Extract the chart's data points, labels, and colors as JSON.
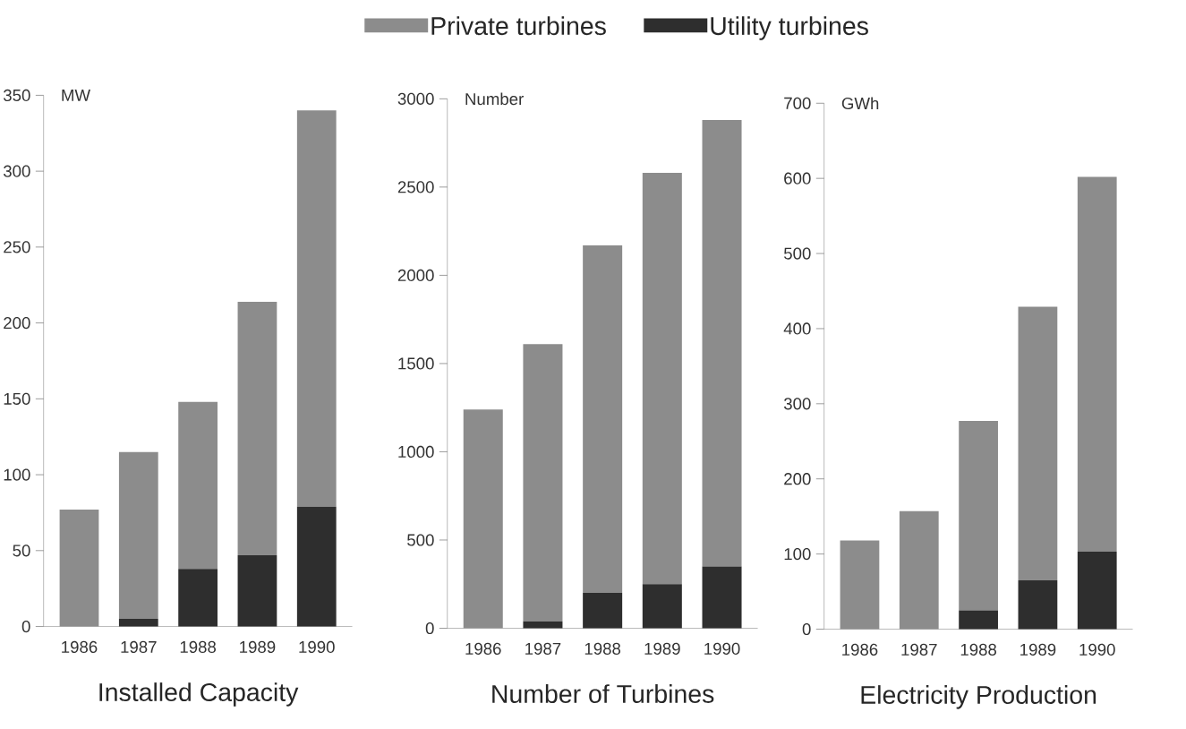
{
  "chart_data": [
    {
      "type": "bar",
      "title": "Installed Capacity",
      "ylabel": "MW",
      "categories": [
        "1986",
        "1987",
        "1988",
        "1989",
        "1990"
      ],
      "stacked": true,
      "legend": "top",
      "series": [
        {
          "name": "Utility turbines",
          "color": "#2e2e2e",
          "values": [
            0,
            5,
            38,
            47,
            79
          ]
        },
        {
          "name": "Private turbines",
          "color": "#8c8c8c",
          "values": [
            77,
            110,
            110,
            167,
            261
          ]
        }
      ],
      "ylim": [
        0,
        350
      ],
      "yticks": [
        0,
        50,
        100,
        150,
        200,
        250,
        300,
        350
      ]
    },
    {
      "type": "bar",
      "title": "Number of Turbines",
      "ylabel": "Number",
      "categories": [
        "1986",
        "1987",
        "1988",
        "1989",
        "1990"
      ],
      "stacked": true,
      "series": [
        {
          "color": "#2e2e2e",
          "values": [
            0,
            40,
            200,
            250,
            350
          ]
        },
        {
          "color": "#8c8c8c",
          "values": [
            1240,
            1570,
            1970,
            2330,
            2530
          ]
        }
      ],
      "ylim": [
        0,
        3000
      ],
      "yticks": [
        0,
        500,
        1000,
        1500,
        2000,
        2500,
        3000
      ]
    },
    {
      "type": "bar",
      "title": "Electricity Production",
      "ylabel": "GWh",
      "categories": [
        "1986",
        "1987",
        "1988",
        "1989",
        "1990"
      ],
      "stacked": true,
      "series": [
        {
          "color": "#2e2e2e",
          "values": [
            0,
            0,
            25,
            65,
            103
          ]
        },
        {
          "color": "#8c8c8c",
          "values": [
            118,
            157,
            252,
            364,
            499
          ]
        }
      ],
      "ylim": [
        0,
        700
      ],
      "yticks": [
        0,
        100,
        200,
        300,
        400,
        500,
        600,
        700
      ]
    }
  ]
}
